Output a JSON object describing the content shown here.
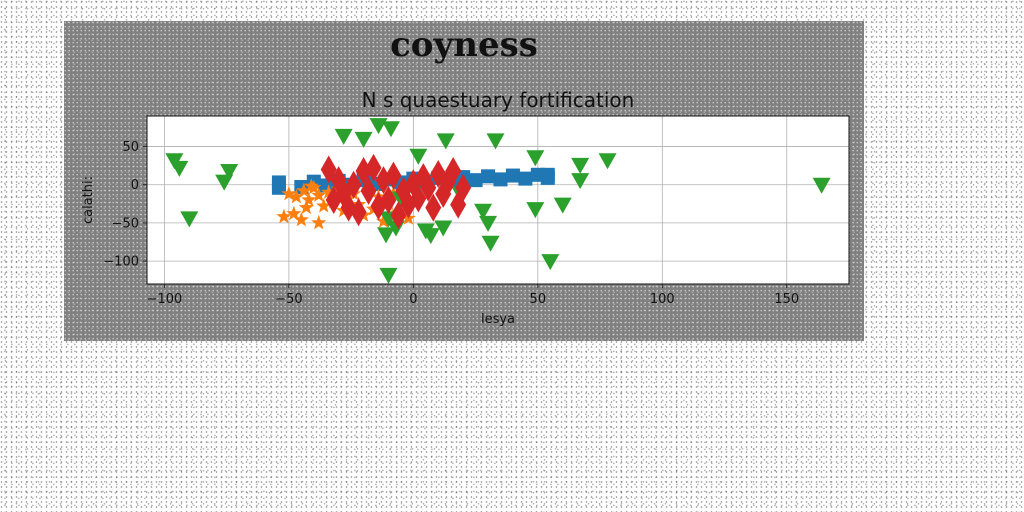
{
  "chart_data": {
    "type": "scatter",
    "suptitle": "coyness",
    "title": "N s quaestuary fortification",
    "xlabel": "lesya",
    "ylabel": "calathi:",
    "xlim": [
      -107,
      175
    ],
    "ylim": [
      -130,
      90
    ],
    "xticks": [
      -100,
      -50,
      0,
      50,
      100,
      150
    ],
    "yticks": [
      50,
      0,
      -50,
      -100
    ],
    "grid": true,
    "colors": {
      "figure_bg": "#808080",
      "plot_bg": "#ffffff",
      "blue": "#1f77b4",
      "orange": "#ff7f0e",
      "green": "#2ca02c",
      "red": "#d62728"
    },
    "series": [
      {
        "marker": "square-band",
        "color": "#1f77b4",
        "points": [
          [
            -54,
            -4
          ],
          [
            -45,
            -3
          ],
          [
            -35,
            -1
          ],
          [
            -25,
            0
          ],
          [
            -15,
            1
          ],
          [
            -5,
            3
          ],
          [
            5,
            4
          ],
          [
            15,
            5
          ],
          [
            25,
            6
          ],
          [
            35,
            7
          ],
          [
            45,
            8
          ],
          [
            54,
            9
          ],
          [
            -54,
            3
          ],
          [
            -40,
            4
          ],
          [
            -30,
            5
          ],
          [
            -20,
            6
          ],
          [
            -10,
            7
          ],
          [
            0,
            8
          ],
          [
            10,
            9
          ],
          [
            20,
            10
          ],
          [
            30,
            11
          ],
          [
            40,
            12
          ],
          [
            50,
            13
          ],
          [
            54,
            13
          ]
        ]
      },
      {
        "marker": "star",
        "color": "#ff7f0e",
        "points": [
          [
            -50,
            -12
          ],
          [
            -47,
            -16
          ],
          [
            -44,
            -8
          ],
          [
            -42,
            -20
          ],
          [
            -40,
            -4
          ],
          [
            -38,
            -14
          ],
          [
            -36,
            -28
          ],
          [
            -34,
            -10
          ],
          [
            -32,
            -22
          ],
          [
            -30,
            -6
          ],
          [
            -28,
            -34
          ],
          [
            -26,
            -18
          ],
          [
            -24,
            -12
          ],
          [
            -22,
            -26
          ],
          [
            -20,
            -40
          ],
          [
            -18,
            -8
          ],
          [
            -16,
            -32
          ],
          [
            -14,
            -16
          ],
          [
            -12,
            -48
          ],
          [
            -10,
            -24
          ],
          [
            -8,
            -12
          ],
          [
            -6,
            -36
          ],
          [
            -4,
            -20
          ],
          [
            -2,
            -44
          ],
          [
            -52,
            -42
          ],
          [
            -48,
            -38
          ],
          [
            -45,
            -46
          ],
          [
            -43,
            -30
          ],
          [
            -41,
            -2
          ],
          [
            -38,
            -50
          ]
        ]
      },
      {
        "marker": "triangle-down",
        "color": "#2ca02c",
        "points": [
          [
            -96,
            32
          ],
          [
            -94,
            22
          ],
          [
            -90,
            -44
          ],
          [
            -76,
            4
          ],
          [
            -74,
            18
          ],
          [
            -28,
            64
          ],
          [
            -20,
            60
          ],
          [
            -14,
            78
          ],
          [
            -9,
            74
          ],
          [
            -11,
            -65
          ],
          [
            -10,
            -44
          ],
          [
            -10,
            -118
          ],
          [
            -7,
            -56
          ],
          [
            -5,
            -18
          ],
          [
            2,
            38
          ],
          [
            5,
            -60
          ],
          [
            7,
            -66
          ],
          [
            12,
            -56
          ],
          [
            13,
            58
          ],
          [
            19,
            -12
          ],
          [
            28,
            -34
          ],
          [
            30,
            -50
          ],
          [
            31,
            -76
          ],
          [
            33,
            58
          ],
          [
            49,
            36
          ],
          [
            49,
            -32
          ],
          [
            55,
            -100
          ],
          [
            60,
            -26
          ],
          [
            67,
            6
          ],
          [
            67,
            26
          ],
          [
            78,
            32
          ],
          [
            164,
            0
          ]
        ]
      },
      {
        "marker": "thin-diamond",
        "color": "#d62728",
        "points": [
          [
            -34,
            20
          ],
          [
            -32,
            -20
          ],
          [
            -30,
            6
          ],
          [
            -28,
            -12
          ],
          [
            -26,
            -30
          ],
          [
            -24,
            0
          ],
          [
            -22,
            -36
          ],
          [
            -20,
            18
          ],
          [
            -18,
            -8
          ],
          [
            -16,
            22
          ],
          [
            -14,
            -28
          ],
          [
            -12,
            6
          ],
          [
            -10,
            -20
          ],
          [
            -8,
            12
          ],
          [
            -6,
            -40
          ],
          [
            -4,
            -8
          ],
          [
            -2,
            -26
          ],
          [
            0,
            2
          ],
          [
            2,
            -18
          ],
          [
            4,
            10
          ],
          [
            6,
            -4
          ],
          [
            8,
            -30
          ],
          [
            10,
            14
          ],
          [
            12,
            -12
          ],
          [
            14,
            4
          ],
          [
            16,
            18
          ],
          [
            18,
            -26
          ],
          [
            20,
            -4
          ]
        ]
      }
    ]
  }
}
